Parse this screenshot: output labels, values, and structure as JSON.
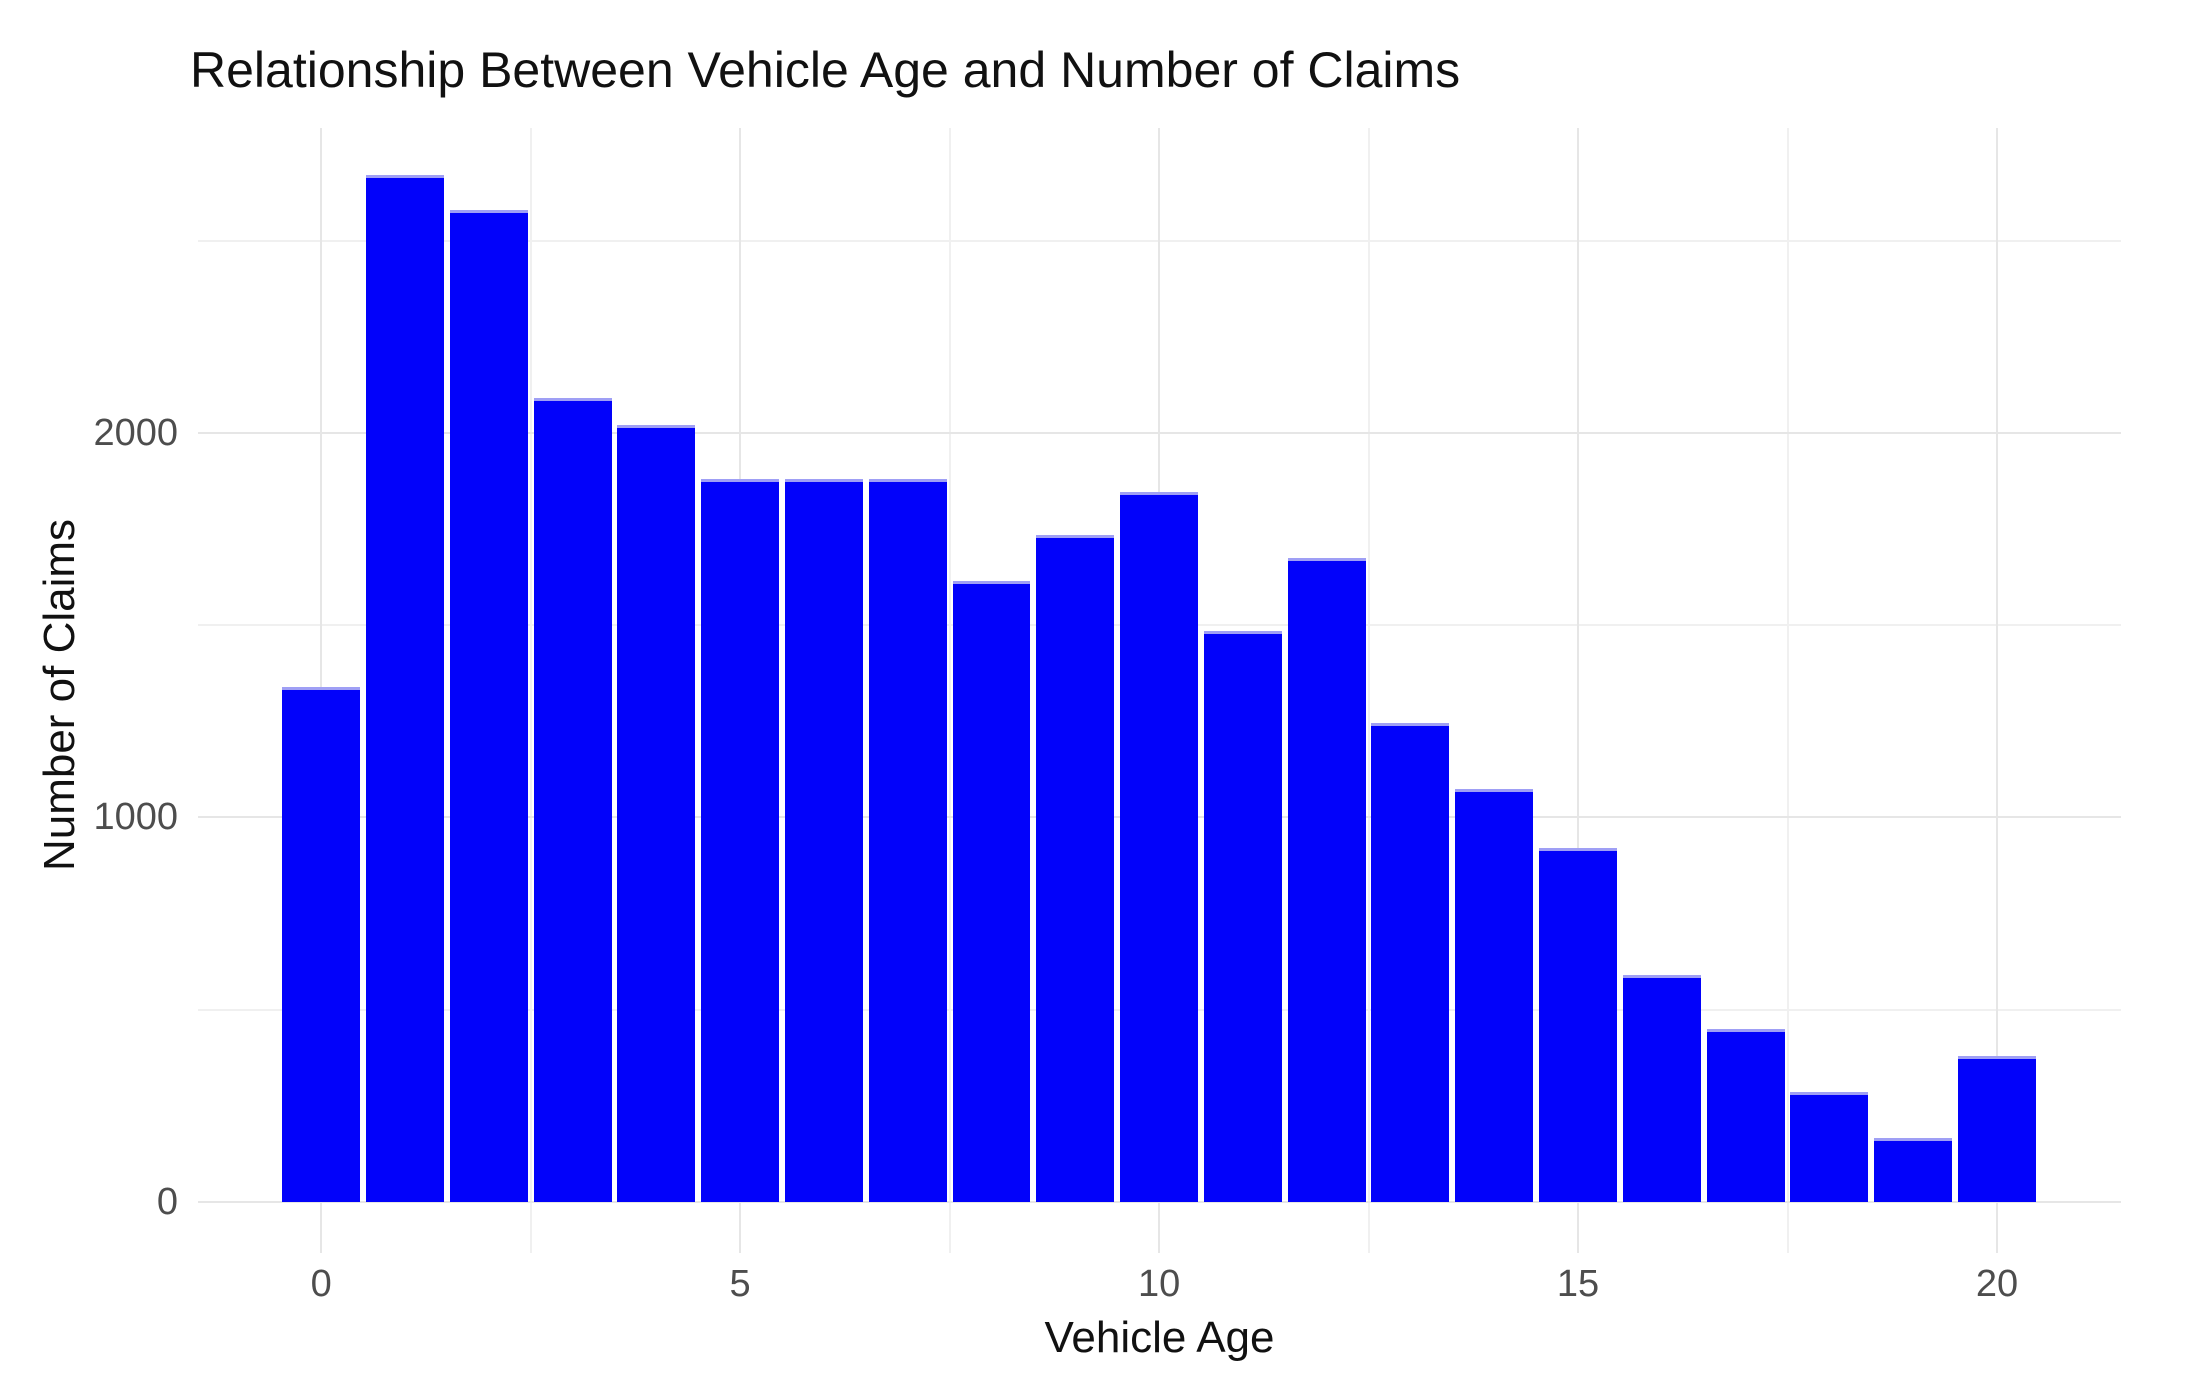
{
  "chart_data": {
    "type": "bar",
    "title": "Relationship Between Vehicle Age and Number of Claims",
    "xlabel": "Vehicle Age",
    "ylabel": "Number of Claims",
    "categories": [
      0,
      1,
      2,
      3,
      4,
      5,
      6,
      7,
      8,
      9,
      10,
      11,
      12,
      13,
      14,
      15,
      16,
      17,
      18,
      19,
      20
    ],
    "values": [
      1340,
      2670,
      2580,
      2090,
      2020,
      1880,
      1880,
      1880,
      1615,
      1735,
      1845,
      1485,
      1675,
      1245,
      1075,
      920,
      590,
      450,
      285,
      165,
      380
    ],
    "bar_width": 0.93,
    "x_ticks": {
      "values": [
        0,
        5,
        10,
        15,
        20
      ],
      "labels": [
        "0",
        "5",
        "10",
        "15",
        "20"
      ],
      "minor": [
        2.5,
        7.5,
        12.5,
        17.5
      ]
    },
    "y_ticks": {
      "values": [
        0,
        1000,
        2000
      ],
      "labels": [
        "0",
        "1000",
        "2000"
      ],
      "minor": [
        500,
        1500,
        2500
      ]
    },
    "x_range": [
      -1.47,
      21.48
    ],
    "y_range": [
      -133,
      2793
    ],
    "grid": true,
    "legend": false,
    "colors": {
      "bar_fill": "#0202fa",
      "bar_top_edge": "#9f9ff5",
      "grid_major": "#e6e6e6",
      "grid_minor": "#f0f0f0",
      "axis_text": "#4d4d4d",
      "title_text": "#111111",
      "background": "#ffffff"
    }
  }
}
